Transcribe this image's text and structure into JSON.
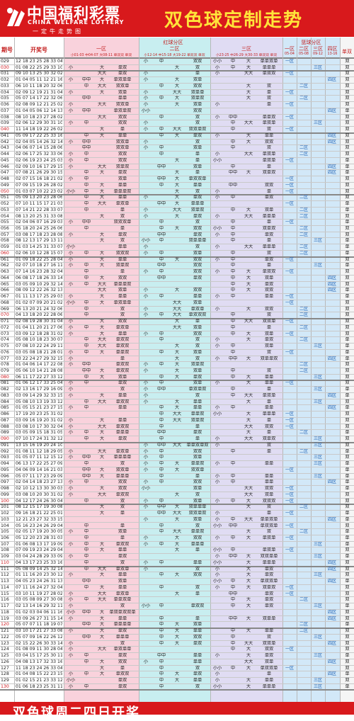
{
  "header": {
    "brand_cn": "中国福利彩票",
    "brand_en": "CHINA WELFARE LOTTERY",
    "slogan": "一定牛走势图",
    "title": "双色球定制走势"
  },
  "columns": {
    "period": "期号",
    "draw": "开奖号",
    "red_zone": "红球分区",
    "blue_zone": "篮球分区",
    "zone1": "一区",
    "zone2": "二区",
    "zone3": "三区",
    "zone1_sub": "小01-03 中04-07 大08-11 单双双 单双",
    "zone2_sub": "小12-14 中15-18 大19-22 单双双 单双",
    "zone3_sub": "小23-25 中26-29 大30-33 单双双 单双",
    "blue_headers": [
      "一区",
      "二区",
      "三区",
      "四区",
      "单双"
    ],
    "blue_sub": [
      "05-04",
      "05-08",
      "09-12",
      "13-16"
    ]
  },
  "colors": {
    "header_red": "#d8191c",
    "title_yellow": "#ffe43a",
    "zone1_bg": "#f9d2dc",
    "zone2_bg": "#c8eef0",
    "zone3_bg": "#e0dcf3",
    "blue_bg": "#d2e8f8",
    "parity_bg": "#f7f7f7"
  },
  "rows": [
    {
      "p": "029",
      "n": "12 18 23 25 28 33 04"
    },
    {
      "p": "030",
      "n": "01 08 22 25 29 33 10"
    },
    {
      "p": "031",
      "n": "09 10 13 25 30 32 02"
    },
    {
      "p": "032",
      "n": "01 04 05 11 12 21 16"
    },
    {
      "p": "033",
      "n": "06 10 11 18 20 32 06"
    },
    {
      "p": "034",
      "n": "02 09 12 19 21 31 04"
    },
    {
      "p": "035",
      "n": "05 07 14 17 22 32 06"
    },
    {
      "p": "036",
      "n": "02 08 09 12 21 25 02"
    },
    {
      "p": "037",
      "n": "01 04 05 06 12 14 13"
    },
    {
      "p": "038",
      "n": "08 10 18 23 27 28 02"
    },
    {
      "p": "039",
      "n": "02 06 12 29 30 31 10"
    },
    {
      "p": "040",
      "n": "11 14 18 19 22 26 02"
    },
    {
      "p": "041",
      "n": "05 09 17 22 25 33 16"
    },
    {
      "p": "042",
      "n": "02 04 05 14 26 32 14"
    },
    {
      "p": "043",
      "n": "04 06 07 14 15 28 06"
    },
    {
      "p": "044",
      "n": "02 06 17 25 32 33 06"
    },
    {
      "p": "045",
      "n": "02 06 19 23 24 25 03"
    },
    {
      "p": "046",
      "n": "02 09 10 16 17 29 15"
    },
    {
      "p": "047",
      "n": "07 08 21 26 29 30 15"
    },
    {
      "p": "048",
      "n": "02 07 15 16 18 21 02"
    },
    {
      "p": "049",
      "n": "07 09 15 19 26 28 02"
    },
    {
      "p": "050",
      "n": "01 03 07 10 22 23 02"
    },
    {
      "p": "051",
      "n": "05 09 13 20 23 28 06"
    },
    {
      "p": "052",
      "n": "07 10 11 15 17 21 03"
    },
    {
      "p": "053",
      "n": "07 14 21 22 28 33 07"
    },
    {
      "p": "054",
      "n": "08 13 20 25 31 33 08"
    },
    {
      "p": "055",
      "n": "02 04 06 07 16 29 03"
    },
    {
      "p": "056",
      "n": "05 18 20 24 25 26 06"
    },
    {
      "p": "057",
      "n": "03 08 17 18 23 28 08"
    },
    {
      "p": "058",
      "n": "08 12 13 17 29 13 11"
    },
    {
      "p": "059",
      "n": "01 03 14 25 31 33 07"
    },
    {
      "p": "060",
      "n": "02 06 10 12 28 15 07"
    },
    {
      "p": "061",
      "n": "01 09 18 22 25 28 04"
    },
    {
      "p": "062",
      "n": "02 07 10 18 27 16 11"
    },
    {
      "p": "063",
      "n": "07 14 16 23 28 32 04"
    },
    {
      "p": "064",
      "n": "06 08 17 18 26 33 14"
    },
    {
      "p": "065",
      "n": "03 05 09 10 29 32 14"
    },
    {
      "p": "066",
      "n": "08 09 12 22 26 32 13"
    },
    {
      "p": "067",
      "n": "01 11 13 17 25 29 03"
    },
    {
      "p": "068",
      "n": "01 02 07 09 20 21 02"
    },
    {
      "p": "069",
      "n": "06 13 20 21 24 32 06"
    },
    {
      "p": "070",
      "n": "04 13 18 20 22 28 06"
    },
    {
      "p": "071",
      "n": "02 08 19 28 30 31 04"
    },
    {
      "p": "072",
      "n": "01 04 11 20 21 27 06"
    },
    {
      "p": "073",
      "n": "03 09 12 18 28 31 02"
    },
    {
      "p": "074",
      "n": "05 08 10 18 23 30 07"
    },
    {
      "p": "075",
      "n": "07 08 10 22 24 29 11"
    },
    {
      "p": "076",
      "n": "03 05 08 18 21 28 01"
    },
    {
      "p": "077",
      "n": "03 22 24 27 29 32 15"
    },
    {
      "p": "078",
      "n": "01 04 06 14 17 22 08"
    },
    {
      "p": "079",
      "n": "05 06 10 14 21 28 08"
    },
    {
      "p": "080",
      "n": "06 11 17 22 27 33 12"
    },
    {
      "p": "081",
      "n": "01 06 12 17 33 25 04"
    },
    {
      "p": "082",
      "n": "02 13 16 17 29 16 09"
    },
    {
      "p": "083",
      "n": "03 09 14 29 32 33 15"
    },
    {
      "p": "084",
      "n": "05 08 10 13 19 33 12"
    },
    {
      "p": "085",
      "n": "01 05 15 21 23 27 15"
    },
    {
      "p": "086",
      "n": "17 19 20 23 25 31 02"
    },
    {
      "p": "087",
      "n": "03 09 16 19 20 31 02"
    },
    {
      "p": "088",
      "n": "03 08 10 17 30 32 04"
    },
    {
      "p": "089",
      "n": "03 05 09 15 18 31 05"
    },
    {
      "p": "090",
      "n": "07 10 17 24 31 32 12"
    },
    {
      "p": "091",
      "n": "13 15 16 19 20 24 10"
    },
    {
      "p": "092",
      "n": "01 08 11 12 18 29 05"
    },
    {
      "p": "093",
      "n": "01 05 07 11 12 15 12"
    },
    {
      "p": "094",
      "n": "06 13 17 22 25 27 09"
    },
    {
      "p": "095",
      "n": "04 06 09 14 16 21 03"
    },
    {
      "p": "096",
      "n": "05 07 11 17 23 29 09"
    },
    {
      "p": "097",
      "n": "02 04 14 18 23 27 13"
    },
    {
      "p": "098",
      "n": "02 10 12 13 30 30 03"
    },
    {
      "p": "099",
      "n": "03 08 10 20 30 31 02"
    },
    {
      "p": "100",
      "n": "04 12 17 24 26 30 04"
    },
    {
      "p": "101",
      "n": "08 12 15 17 19 30 08"
    },
    {
      "p": "102",
      "n": "09 16 18 21 22 25 01"
    },
    {
      "p": "103",
      "n": "12 21 23 27 32 33 15"
    },
    {
      "p": "104",
      "n": "05 16 23 24 26 29 04"
    },
    {
      "p": "105",
      "n": "02 05 17 19 20 30 05"
    },
    {
      "p": "106",
      "n": "05 12 20 23 28 31 03"
    },
    {
      "p": "107",
      "n": "01 06 08 13 17 19 09"
    },
    {
      "p": "108",
      "n": "07 09 19 23 24 29 04"
    },
    {
      "p": "109",
      "n": "03 04 24 28 29 33 09"
    },
    {
      "p": "110",
      "n": "04 13 17 23 25 33 16"
    },
    {
      "p": "111",
      "n": "05 08 09 14 25 32 14"
    },
    {
      "p": "112",
      "n": "01 11 16 20 23 30 12"
    },
    {
      "p": "113",
      "n": "04 05 23 24 26 31 13"
    },
    {
      "p": "114",
      "n": "07 11 16 24 27 32 04"
    },
    {
      "p": "115",
      "n": "03 10 11 19 27 28 02"
    },
    {
      "p": "116",
      "n": "03 05 08 09 27 30 08"
    },
    {
      "p": "117",
      "n": "02 13 14 16 29 32 11"
    },
    {
      "p": "118",
      "n": "01 02 03 04 06 11 16"
    },
    {
      "p": "119",
      "n": "03 09 26 27 31 15 14"
    },
    {
      "p": "120",
      "n": "05 07 07 11 18 19 07"
    },
    {
      "p": "121",
      "n": "03 10 17 21 27 33 08"
    },
    {
      "p": "122",
      "n": "05 07 09 16 22 26 12"
    },
    {
      "p": "123",
      "n": "02 15 22 26 30 33 14"
    },
    {
      "p": "124",
      "n": "01 08 09 11 30 28 04"
    },
    {
      "p": "125",
      "n": "03 04 15 17 25 30 11"
    },
    {
      "p": "126",
      "n": "04 08 13 17 32 33 16"
    },
    {
      "p": "127",
      "n": "11 18 23 24 26 33 04"
    },
    {
      "p": "128",
      "n": "01 04 08 15 22 23 15"
    },
    {
      "p": "129",
      "n": "01 02 15 21 23 33 12"
    },
    {
      "p": "130",
      "n": "01 06 18 23 25 31 11"
    }
  ],
  "footer": {
    "text": "双色球周二四日开奖"
  }
}
